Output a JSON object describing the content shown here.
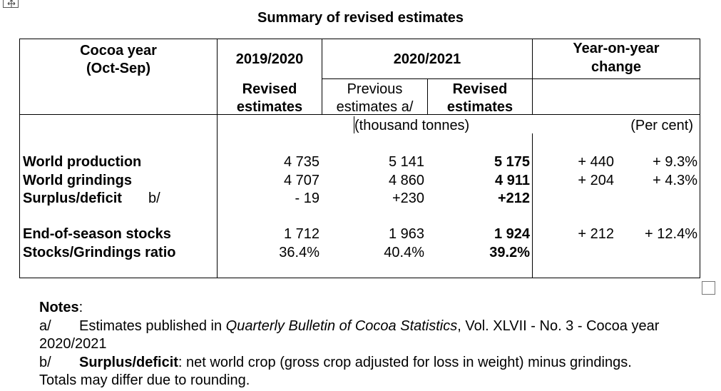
{
  "title": "Summary of revised estimates",
  "header": {
    "cocoa_year_line1": "Cocoa year",
    "cocoa_year_line2": "(Oct-Sep)",
    "year1": "2019/2020",
    "year2": "2020/2021",
    "yoy_line1": "Year-on-year",
    "yoy_line2": "change",
    "revised_line1": "Revised",
    "revised_line2": "estimates",
    "previous_line1": "Previous",
    "previous_line2": "estimates a/",
    "revised2_line1": "Revised",
    "revised2_line2": "estimates",
    "unit_tonnes": "(thousand tonnes)",
    "unit_percent": "(Per cent)"
  },
  "rows": [
    {
      "label": "World production",
      "label_note": "",
      "y2019": "4 735",
      "prev": "5 141",
      "rev": "5 175",
      "chg": "+ 440",
      "pct": "+ 9.3%"
    },
    {
      "label": "World grindings",
      "label_note": "",
      "y2019": "4 707",
      "prev": "4 860",
      "rev": "4 911",
      "chg": "+ 204",
      "pct": "+ 4.3%"
    },
    {
      "label": "Surplus/deficit",
      "label_note": "b/",
      "y2019": "- 19",
      "prev": "+230",
      "rev": "+212",
      "chg": "",
      "pct": ""
    },
    {
      "label": "End-of-season stocks",
      "label_note": "",
      "y2019": "1 712",
      "prev": "1 963",
      "rev": "1 924",
      "chg": "+ 212",
      "pct": "+ 12.4%"
    },
    {
      "label": "Stocks/Grindings ratio",
      "label_note": "",
      "y2019": "36.4%",
      "prev": "40.4%",
      "rev": "39.2%",
      "chg": "",
      "pct": ""
    }
  ],
  "notes": {
    "heading": "Notes",
    "heading_colon": ":",
    "a_marker": "a/",
    "a_text_before": "Estimates published in ",
    "a_italic": "Quarterly Bulletin of Cocoa Statistics",
    "a_text_after": ", Vol. XLVII - No. 3 - Cocoa year 2020/2021",
    "b_marker": "b/",
    "b_bold": "Surplus/deficit",
    "b_text": ": net world crop (gross crop adjusted for loss in weight) minus grindings.",
    "rounding": "Totals may differ due to rounding."
  }
}
